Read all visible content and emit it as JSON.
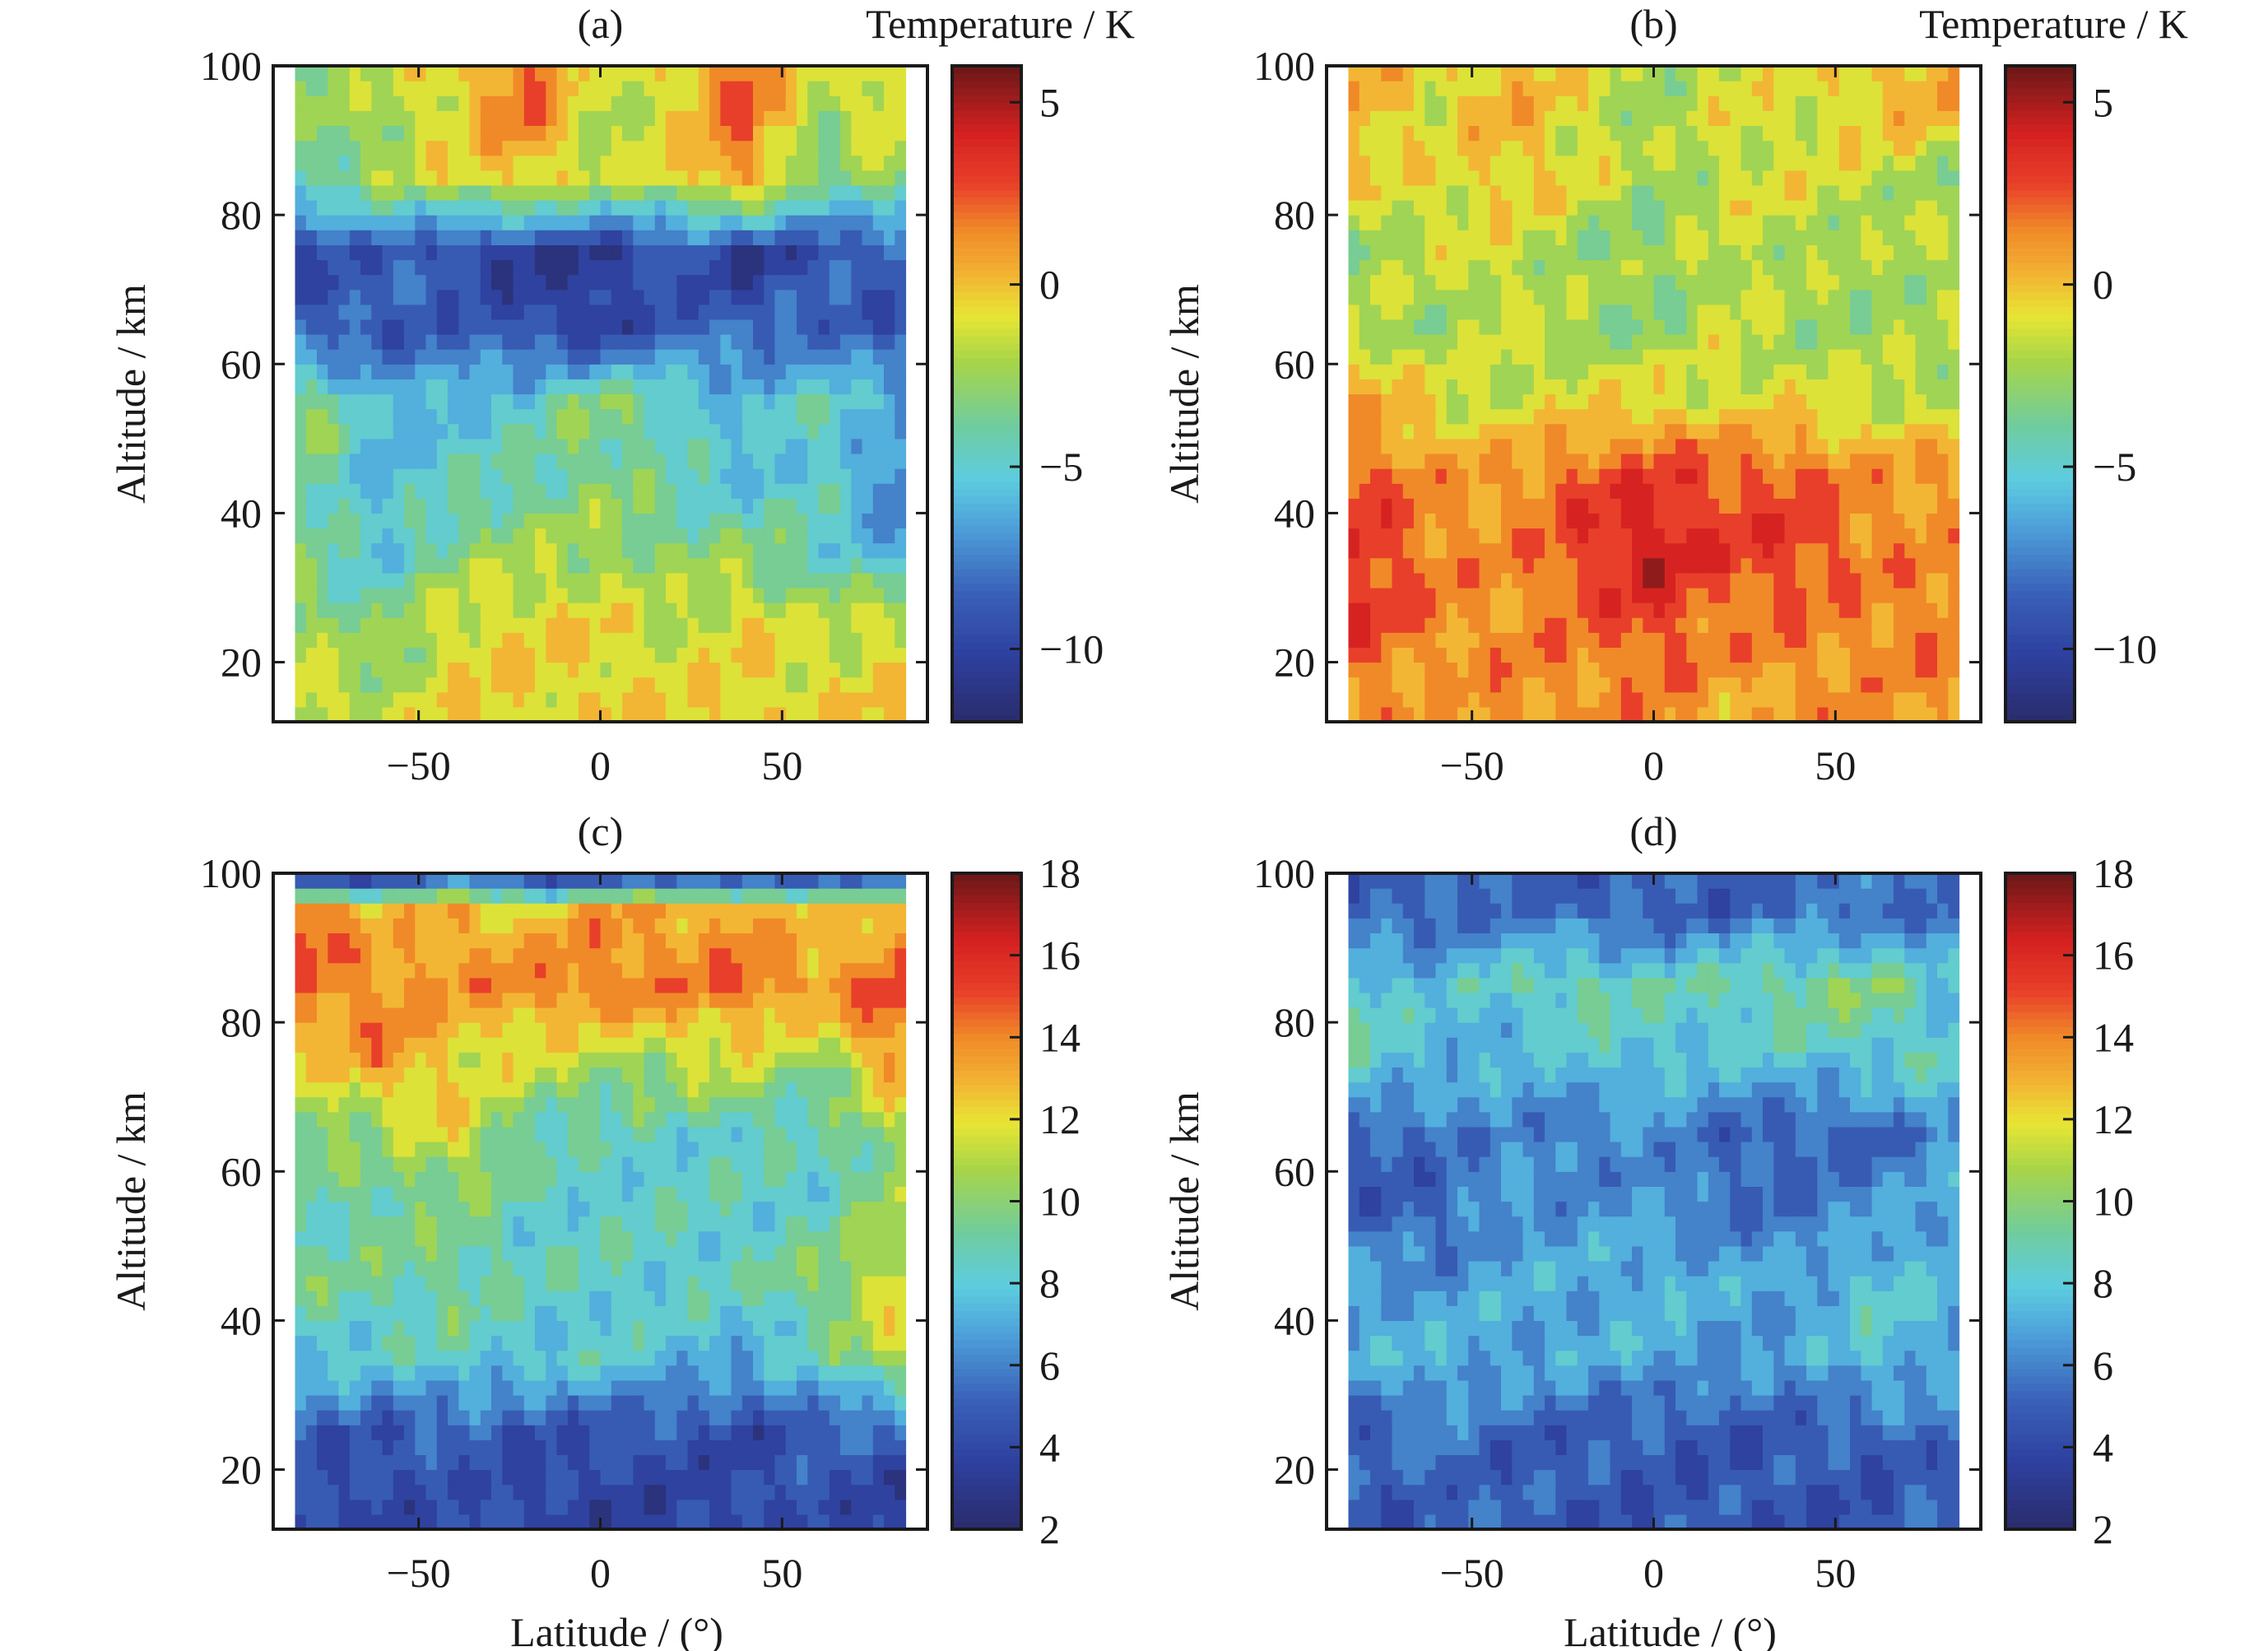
{
  "chart_data": [
    {
      "type": "heatmap",
      "panel_label": "(a)",
      "colorbar_label": "Temperature / K",
      "xlabel": "",
      "ylabel": "Altitude / km",
      "xlim": [
        -90,
        90
      ],
      "ylim": [
        12,
        100
      ],
      "clim": [
        -12,
        6
      ],
      "xticks": [
        "−50",
        "0",
        "50"
      ],
      "xtick_values": [
        -50,
        0,
        50
      ],
      "yticks": [
        "20",
        "40",
        "60",
        "80",
        "100"
      ],
      "ytick_values": [
        20,
        40,
        60,
        80,
        100
      ],
      "cticks": [
        "5",
        "0",
        "−5",
        "−10"
      ],
      "ctick_values": [
        5,
        0,
        -5,
        -10
      ],
      "lat": [
        -80,
        -60,
        -40,
        -20,
        0,
        20,
        40,
        60,
        80
      ],
      "alt": [
        95,
        85,
        75,
        65,
        55,
        45,
        35,
        25,
        15
      ],
      "values": [
        [
          -3,
          -2,
          -0.5,
          2.5,
          -2,
          -0.5,
          2.5,
          -2,
          -0.5
        ],
        [
          -4,
          -2.5,
          -1,
          0,
          -2,
          -1,
          1.5,
          -4,
          -2.5
        ],
        [
          -9.5,
          -8.5,
          -9.5,
          -11,
          -10.5,
          -9,
          -11,
          -9,
          -9
        ],
        [
          -9,
          -9,
          -8.5,
          -9.5,
          -10.5,
          -8.5,
          -8.5,
          -8.5,
          -9
        ],
        [
          -3,
          -6,
          -6,
          -5,
          -3,
          -4.5,
          -6,
          -4.5,
          -6
        ],
        [
          -3,
          -6,
          -4.5,
          -4,
          -3,
          -4.5,
          -6,
          -4.5,
          -8
        ],
        [
          -4,
          -5.5,
          -3,
          -2.5,
          -2.5,
          -3,
          -3,
          -4.5,
          -6
        ],
        [
          -2.5,
          -3.5,
          -1,
          -0.5,
          -0.5,
          -2,
          -0.5,
          -2,
          -1
        ],
        [
          -1,
          -2,
          -0.5,
          -0.5,
          -0.5,
          -0.5,
          -0.5,
          -0.5,
          -0.5
        ]
      ]
    },
    {
      "type": "heatmap",
      "panel_label": "(b)",
      "colorbar_label": "Temperature / K",
      "xlabel": "",
      "ylabel": "Altitude / km",
      "xlim": [
        -90,
        90
      ],
      "ylim": [
        12,
        100
      ],
      "clim": [
        -12,
        6
      ],
      "xticks": [
        "−50",
        "0",
        "50"
      ],
      "xtick_values": [
        -50,
        0,
        50
      ],
      "yticks": [
        "20",
        "40",
        "60",
        "80",
        "100"
      ],
      "ytick_values": [
        20,
        40,
        60,
        80,
        100
      ],
      "cticks": [
        "5",
        "0",
        "−5",
        "−10"
      ],
      "ctick_values": [
        5,
        0,
        -5,
        -10
      ],
      "lat": [
        -80,
        -60,
        -40,
        -20,
        0,
        20,
        40,
        60,
        80
      ],
      "alt": [
        95,
        85,
        75,
        65,
        55,
        45,
        35,
        25,
        15
      ],
      "values": [
        [
          0.5,
          -1,
          0.5,
          -1,
          -2.5,
          -1,
          -1.5,
          0,
          0.5
        ],
        [
          -1,
          -1,
          0,
          -1,
          -2.5,
          -1.5,
          -1,
          -1.5,
          -2.5
        ],
        [
          -2.5,
          -1.5,
          -1.5,
          -2.5,
          -3,
          -1.5,
          -2,
          -2.5,
          -1.5
        ],
        [
          -1.5,
          -2.5,
          -1.5,
          -2.5,
          -3,
          -1.5,
          -2.5,
          -2.5,
          -2.5
        ],
        [
          0.5,
          -1,
          -1.5,
          -1,
          -0.5,
          -1,
          -1,
          -1.5,
          -1.5
        ],
        [
          2.5,
          1,
          1,
          2.5,
          3,
          2.5,
          2.5,
          1,
          1
        ],
        [
          3.5,
          1.5,
          1,
          3,
          4.5,
          3,
          3,
          1.5,
          1
        ],
        [
          3,
          1.5,
          1,
          2,
          3,
          1.5,
          1.5,
          1.5,
          2
        ],
        [
          1.5,
          0.5,
          1.5,
          1,
          1.5,
          0.5,
          1,
          1,
          1
        ]
      ]
    },
    {
      "type": "heatmap",
      "panel_label": "(c)",
      "colorbar_label": "",
      "xlabel": "Latitude / (°)",
      "ylabel": "Altitude / km",
      "xlim": [
        -90,
        90
      ],
      "ylim": [
        12,
        100
      ],
      "clim": [
        2,
        18
      ],
      "xticks": [
        "−50",
        "0",
        "50"
      ],
      "xtick_values": [
        -50,
        0,
        50
      ],
      "yticks": [
        "20",
        "40",
        "60",
        "80",
        "100"
      ],
      "ytick_values": [
        20,
        40,
        60,
        80,
        100
      ],
      "cticks": [
        "18",
        "16",
        "14",
        "12",
        "10",
        "8",
        "6",
        "4",
        "2"
      ],
      "ctick_values": [
        18,
        16,
        14,
        12,
        10,
        8,
        6,
        4,
        2
      ],
      "lat": [
        -80,
        -60,
        -40,
        -20,
        0,
        20,
        40,
        60,
        80
      ],
      "alt": [
        99,
        95,
        85,
        75,
        65,
        55,
        45,
        35,
        25,
        15
      ],
      "values": [
        [
          5,
          5,
          6,
          5,
          5.5,
          5,
          6,
          5.5,
          5
        ],
        [
          15,
          12,
          13.5,
          12,
          13.5,
          13,
          13.5,
          12,
          13
        ],
        [
          14.5,
          14,
          13.5,
          14,
          14.5,
          14,
          14.5,
          13.5,
          15
        ],
        [
          12,
          14,
          12,
          11.5,
          10.5,
          11,
          11.5,
          10,
          14
        ],
        [
          10,
          10,
          12,
          9,
          8.5,
          8.5,
          8.5,
          8.5,
          10
        ],
        [
          8.5,
          9.5,
          9.5,
          8.5,
          8.5,
          8.5,
          8.5,
          8.5,
          10.5
        ],
        [
          9.5,
          9,
          9.5,
          8.5,
          8.5,
          8.5,
          8.5,
          10,
          12
        ],
        [
          8,
          8,
          8.5,
          8,
          8,
          7.5,
          7,
          8.5,
          11
        ],
        [
          5,
          4.5,
          5,
          4.5,
          4.5,
          4.5,
          4,
          5,
          5
        ],
        [
          4,
          4,
          4.5,
          4,
          3.5,
          4,
          4,
          4.5,
          3.5
        ]
      ]
    },
    {
      "type": "heatmap",
      "panel_label": "(d)",
      "colorbar_label": "",
      "xlabel": "Latitude / (°)",
      "ylabel": "Altitude / km",
      "xlim": [
        -90,
        90
      ],
      "ylim": [
        12,
        100
      ],
      "clim": [
        2,
        18
      ],
      "xticks": [
        "−50",
        "0",
        "50"
      ],
      "xtick_values": [
        -50,
        0,
        50
      ],
      "yticks": [
        "20",
        "40",
        "60",
        "80",
        "100"
      ],
      "ytick_values": [
        20,
        40,
        60,
        80,
        100
      ],
      "cticks": [
        "18",
        "16",
        "14",
        "12",
        "10",
        "8",
        "6",
        "4",
        "2"
      ],
      "ctick_values": [
        18,
        16,
        14,
        12,
        10,
        8,
        6,
        4,
        2
      ],
      "lat": [
        -80,
        -60,
        -40,
        -20,
        0,
        20,
        40,
        60,
        80
      ],
      "alt": [
        95,
        85,
        75,
        65,
        55,
        45,
        35,
        25,
        15
      ],
      "values": [
        [
          5,
          5,
          5.5,
          5,
          5,
          5,
          5.5,
          5.5,
          5.5
        ],
        [
          8.5,
          7.5,
          8.5,
          9,
          8.5,
          9,
          9.5,
          10,
          7.5
        ],
        [
          8.5,
          7.5,
          7,
          8,
          8,
          7.5,
          8,
          8,
          8.5
        ],
        [
          5,
          5.5,
          6.5,
          5.5,
          6.5,
          5,
          5,
          5,
          6.5
        ],
        [
          5,
          5,
          6.5,
          6.5,
          6.5,
          5.5,
          5.5,
          6.5,
          7
        ],
        [
          7,
          6.5,
          7,
          7,
          7.5,
          7,
          7,
          8,
          7.5
        ],
        [
          7,
          7.5,
          7,
          7,
          7,
          6.5,
          6.5,
          8,
          7
        ],
        [
          5,
          6,
          5,
          5,
          5,
          4.5,
          5,
          5,
          5.5
        ],
        [
          4.5,
          5,
          5,
          4.5,
          4.5,
          4.5,
          4.5,
          4.5,
          5
        ]
      ]
    }
  ]
}
